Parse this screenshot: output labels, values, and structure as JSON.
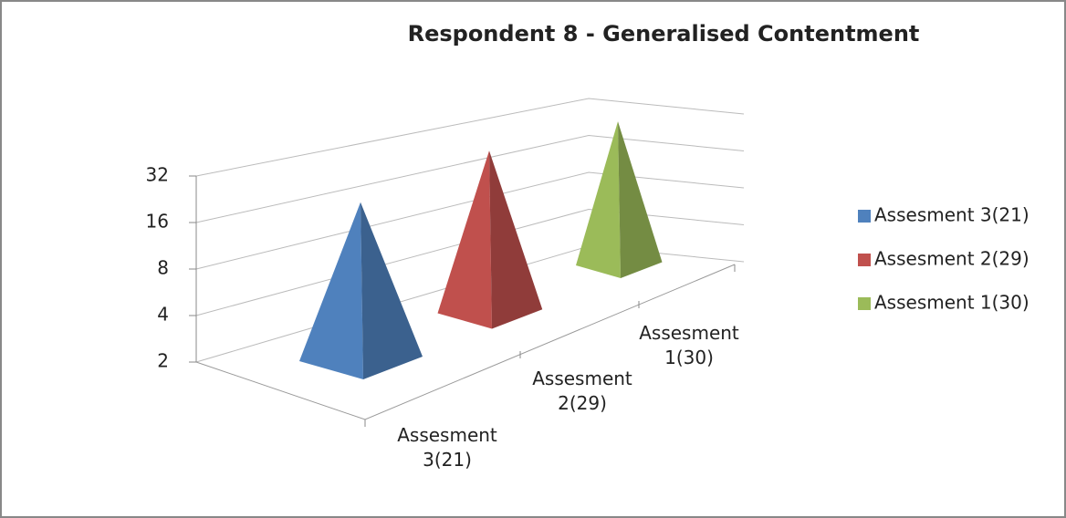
{
  "chart_data": {
    "type": "pyramid",
    "title": "Respondent 8 - Generalised Contentment",
    "categories": [
      "Assesment 3(21)",
      "Assesment 2(29)",
      "Assesment 1(30)"
    ],
    "values": [
      21,
      29,
      30
    ],
    "colors": [
      "#4f81bd",
      "#c0504d",
      "#9bbb59"
    ],
    "ylim": [
      2,
      32
    ],
    "yticks": [
      2,
      4,
      8,
      16,
      32
    ],
    "log_scale": true,
    "log_base": 2,
    "grid": true,
    "legend": "right"
  }
}
